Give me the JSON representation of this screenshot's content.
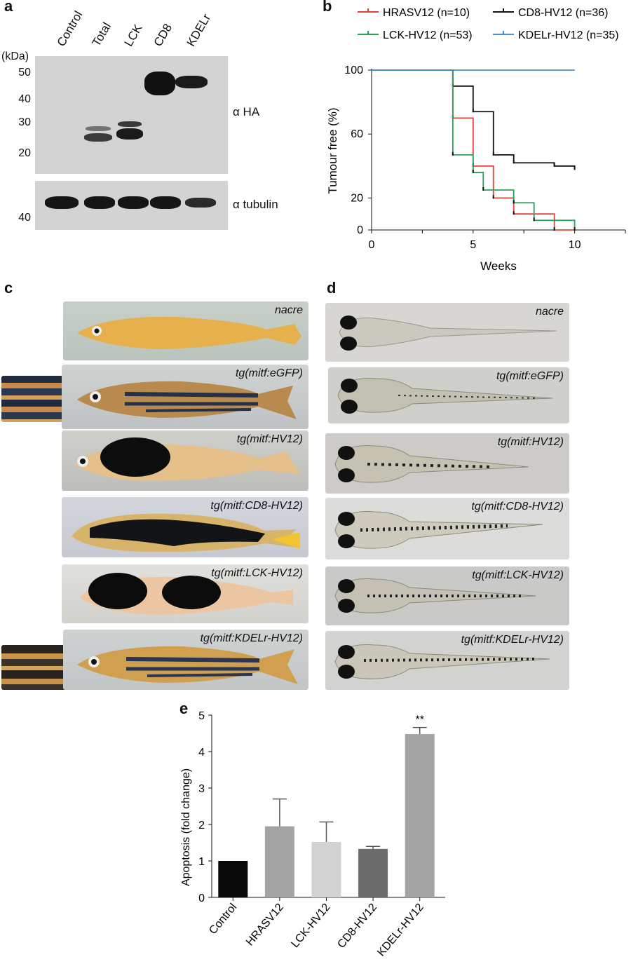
{
  "panel_labels": {
    "a": "a",
    "b": "b",
    "c": "c",
    "d": "d",
    "e": "e"
  },
  "blot": {
    "lanes": [
      "Control",
      "Total",
      "LCK",
      "CD8",
      "KDELr"
    ],
    "kda_unit": "(kDa)",
    "kda_top": [
      "50",
      "40",
      "30",
      "20"
    ],
    "kda_bottom": [
      "40"
    ],
    "antibody_top": "α HA",
    "antibody_bottom": "α tubulin"
  },
  "photos_c": [
    "nacre",
    "tg(mitf:eGFP)",
    "tg(mitf:HV12)",
    "tg(mitf:CD8-HV12)",
    "tg(mitf:LCK-HV12)",
    "tg(mitf:KDELr-HV12)"
  ],
  "photos_d": [
    "nacre",
    "tg(mitf:eGFP)",
    "tg(mitf:HV12)",
    "tg(mitf:CD8-HV12)",
    "tg(mitf:LCK-HV12)",
    "tg(mitf:KDELr-HV12)"
  ],
  "chart_data": [
    {
      "type": "line",
      "subtype": "kaplan-meier",
      "xlabel": "Weeks",
      "ylabel": "Tumour free (%)",
      "xlim": [
        0,
        12.5
      ],
      "ylim": [
        0,
        100
      ],
      "xticks": [
        "0",
        "5",
        "10"
      ],
      "yticks": [
        "0",
        "20",
        "60",
        "100"
      ],
      "legend_placement": "top",
      "series": [
        {
          "name": "HRASV12 (n=10)",
          "color": "#e0443a",
          "points": [
            [
              0,
              100
            ],
            [
              4,
              100
            ],
            [
              4,
              70
            ],
            [
              5,
              70
            ],
            [
              5,
              40
            ],
            [
              6,
              40
            ],
            [
              6,
              20
            ],
            [
              7,
              20
            ],
            [
              7,
              10
            ],
            [
              9,
              10
            ],
            [
              9,
              0
            ],
            [
              10,
              0
            ]
          ]
        },
        {
          "name": "CD8-HV12 (n=36)",
          "color": "#111111",
          "points": [
            [
              0,
              100
            ],
            [
              4,
              100
            ],
            [
              4,
              90
            ],
            [
              5,
              90
            ],
            [
              5,
              74
            ],
            [
              6,
              74
            ],
            [
              6,
              47
            ],
            [
              7,
              47
            ],
            [
              7,
              42
            ],
            [
              9,
              42
            ],
            [
              9,
              40
            ],
            [
              10,
              40
            ],
            [
              10,
              38
            ]
          ]
        },
        {
          "name": "LCK-HV12 (n=53)",
          "color": "#2aa060",
          "points": [
            [
              0,
              100
            ],
            [
              4,
              100
            ],
            [
              4,
              47
            ],
            [
              5,
              47
            ],
            [
              5,
              36
            ],
            [
              5.5,
              36
            ],
            [
              5.5,
              25
            ],
            [
              7,
              25
            ],
            [
              7,
              17
            ],
            [
              8,
              17
            ],
            [
              8,
              6
            ],
            [
              10,
              6
            ],
            [
              10,
              0
            ]
          ]
        },
        {
          "name": "KDELr-HV12 (n=35)",
          "color": "#4a8fd0",
          "points": [
            [
              0,
              100
            ],
            [
              10,
              100
            ]
          ]
        }
      ]
    },
    {
      "type": "bar",
      "ylabel": "Apoptosis (fold change)",
      "ylim": [
        0,
        5
      ],
      "yticks": [
        "0",
        "1",
        "2",
        "3",
        "4",
        "5"
      ],
      "categories": [
        "Control",
        "HRASV12",
        "LCK-HV12",
        "CD8-HV12",
        "KDELr-HV12"
      ],
      "values": [
        1.0,
        1.95,
        1.52,
        1.33,
        4.48
      ],
      "errors": [
        0,
        0.75,
        0.55,
        0.07,
        0.18
      ],
      "colors": [
        "#0a0a0a",
        "#a3a3a3",
        "#d2d2d2",
        "#6c6c6c",
        "#a3a3a3"
      ],
      "annotations": [
        {
          "category": "KDELr-HV12",
          "text": "**"
        }
      ]
    }
  ]
}
